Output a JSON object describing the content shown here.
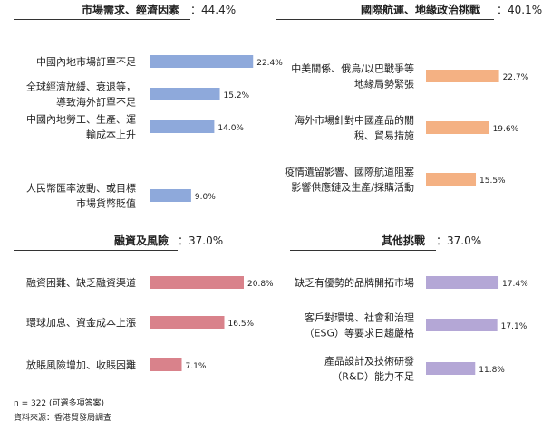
{
  "chart_data": [
    {
      "type": "bar",
      "title": "市場需求、經濟因素",
      "title_value": "：44.4%",
      "color": "#8ea9db",
      "categories": [
        [
          "中國內地市場訂單不足"
        ],
        [
          "全球經濟放緩、衰退等，",
          "導致海外訂單不足"
        ],
        [
          "中國內地勞工、生產、運",
          "輸成本上升"
        ],
        [
          "人民幣匯率波動、或目標",
          "市場貨幣貶值"
        ]
      ],
      "values": [
        22.4,
        15.2,
        14.0,
        9.0
      ],
      "value_labels": [
        "22.4%",
        "15.2%",
        "14.0%",
        "9.0%"
      ]
    },
    {
      "type": "bar",
      "title": "國際航運、地緣政治挑戰",
      "title_value": "：40.1%",
      "color": "#f4b183",
      "categories": [
        [
          "中美關係、俄烏/以巴戰爭等",
          "地緣局勢緊張"
        ],
        [
          "海外市場針對中國產品的關",
          "稅、貿易措施"
        ],
        [
          "疫情遺留影響、國際航道阻塞",
          "影響供應鏈及生產/採購活動"
        ]
      ],
      "values": [
        22.7,
        19.6,
        15.5
      ],
      "value_labels": [
        "22.7%",
        "19.6%",
        "15.5%"
      ]
    },
    {
      "type": "bar",
      "title": "融資及風險",
      "title_value": "：37.0%",
      "color": "#d9828b",
      "categories": [
        [
          "融資困難、缺乏融資渠道"
        ],
        [
          "環球加息、資金成本上漲"
        ],
        [
          "放賬風險增加、收賬困難"
        ]
      ],
      "values": [
        20.8,
        16.5,
        7.1
      ],
      "value_labels": [
        "20.8%",
        "16.5%",
        "7.1%"
      ]
    },
    {
      "type": "bar",
      "title": "其他挑戰",
      "title_value": "：37.0%",
      "color": "#b4a7d6",
      "categories": [
        [
          "缺乏有優勢的品牌開拓市場"
        ],
        [
          "客戶對環境、社會和治理",
          "（ESG）等要求日趨嚴格"
        ],
        [
          "產品設計及技術研發",
          "（R&D）能力不足"
        ]
      ],
      "values": [
        17.4,
        17.1,
        11.8
      ],
      "value_labels": [
        "17.4%",
        "17.1%",
        "11.8%"
      ]
    }
  ],
  "footer": {
    "note": "n = 322 (可選多項答案)",
    "source": "資料來源：香港貿發局調查"
  }
}
